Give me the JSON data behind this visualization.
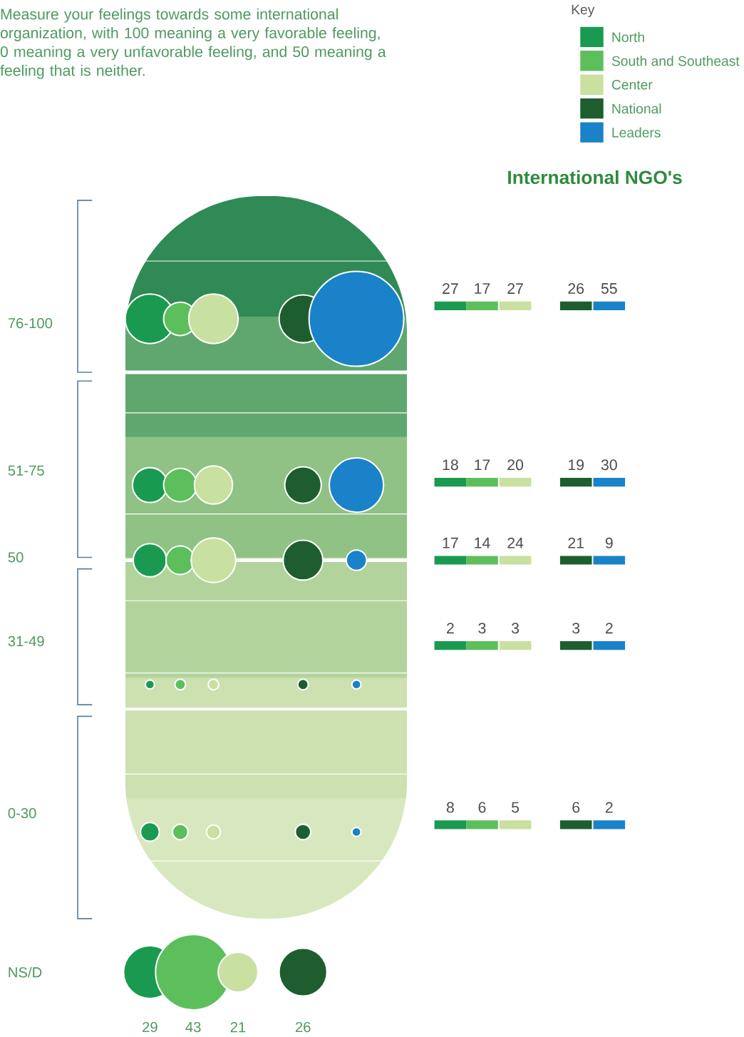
{
  "chart_data": {
    "type": "other",
    "subtitle": "Measure your feelings towards some international organization, with 100 meaning a very favorable feeling, 0 meaning a very unfavorable feeling, and 50 meaning a feeling that is neither.",
    "title": "International NGO's",
    "legend_title": "Key",
    "legend": "top right",
    "data_labels": true,
    "categories": [
      "76-100",
      "51-75",
      "50",
      "31-49",
      "0-30",
      "NS/D"
    ],
    "series": [
      {
        "name": "North",
        "color": "#1a9a50",
        "values": [
          27,
          18,
          17,
          2,
          8,
          29
        ]
      },
      {
        "name": "South and Southeast",
        "color": "#5cbf5c",
        "values": [
          17,
          17,
          14,
          3,
          6,
          43
        ]
      },
      {
        "name": "Center",
        "color": "#c8e0a0",
        "values": [
          27,
          20,
          24,
          3,
          5,
          21
        ]
      },
      {
        "name": "National",
        "color": "#1e5e2e",
        "values": [
          26,
          19,
          21,
          3,
          6,
          26
        ]
      },
      {
        "name": "Leaders",
        "color": "#1a82c8",
        "values": [
          55,
          30,
          9,
          2,
          2,
          null
        ]
      }
    ]
  }
}
